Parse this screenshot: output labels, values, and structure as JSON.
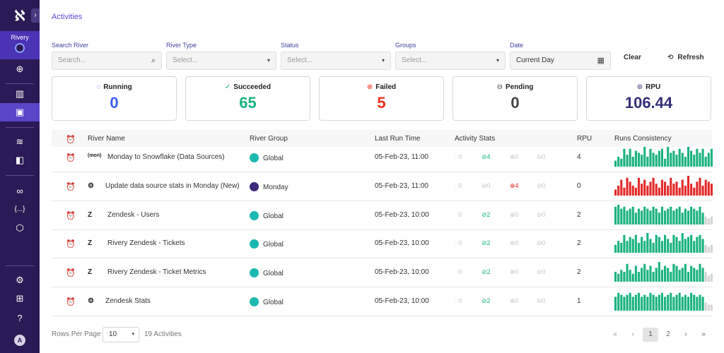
{
  "sidebar": {
    "logo_glyph": "ℵ",
    "expand_glyph": "›",
    "account_label": "Rivery",
    "avatar_letter": "A",
    "items_top": [
      {
        "name": "add-icon",
        "glyph": "⊕"
      },
      {
        "name": "chart-icon",
        "glyph": "▥"
      },
      {
        "name": "activities-icon",
        "glyph": "▣"
      },
      {
        "name": "rivers-icon",
        "glyph": "≋"
      },
      {
        "name": "briefcase-icon",
        "glyph": "◧"
      },
      {
        "name": "link-icon",
        "glyph": "∞"
      },
      {
        "name": "variables-icon",
        "glyph": "{...}"
      },
      {
        "name": "cube-icon",
        "glyph": "⬡"
      }
    ],
    "items_bottom": [
      {
        "name": "settings-icon",
        "glyph": "⚙"
      },
      {
        "name": "gift-icon",
        "glyph": "⊞"
      },
      {
        "name": "help-icon",
        "glyph": "?"
      }
    ]
  },
  "page": {
    "title": "Activities"
  },
  "filters": {
    "search": {
      "label": "Search River",
      "placeholder": "Search...",
      "icon": "🔍"
    },
    "river_type": {
      "label": "River Type",
      "placeholder": "Select..."
    },
    "status": {
      "label": "Status",
      "placeholder": "Select..."
    },
    "groups": {
      "label": "Groups",
      "placeholder": "Select..."
    },
    "date": {
      "label": "Date",
      "value": "Current Day",
      "icon": "▦"
    },
    "clear_label": "Clear",
    "refresh_label": "Refresh",
    "refresh_icon": "⟲",
    "caret": "▾"
  },
  "stats": [
    {
      "label": "Running",
      "value": "0",
      "icon": "◌",
      "color": "#3a5ef0"
    },
    {
      "label": "Succeeded",
      "value": "65",
      "icon": "✓",
      "color": "#1bb27f"
    },
    {
      "label": "Failed",
      "value": "5",
      "icon": "⊗",
      "color": "#f0301e"
    },
    {
      "label": "Pending",
      "value": "0",
      "icon": "⊖",
      "color": "#444444"
    },
    {
      "label": "RPU",
      "value": "106.44",
      "icon": "⊛",
      "color": "#33307a"
    }
  ],
  "table": {
    "headers": {
      "alarm": "⏰",
      "river_name": "River Name",
      "river_group": "River Group",
      "last_run": "Last Run Time",
      "activity_stats": "Activity Stats",
      "rpu": "RPU",
      "consistency": "Runs Consistency"
    },
    "status_glyphs": {
      "running": "◌",
      "succeeded": "⊘",
      "failed": "⊗",
      "pending": "⊖"
    },
    "rows": [
      {
        "river": "Monday to Snowflake (Data Sources)",
        "icon": "(mon)",
        "group": "Global",
        "group_color": "#1bb8b0",
        "last_run": "05-Feb-23, 11:00",
        "running": "0",
        "succeeded": "4",
        "failed": "0",
        "pending": "0",
        "rpu": "4",
        "alarm_active": false,
        "bars": [
          0.3,
          0.5,
          0.4,
          0.9,
          0.6,
          0.9,
          0.5,
          0.8,
          0.7,
          0.6,
          1.0,
          0.5,
          0.9,
          0.7,
          0.6,
          0.8,
          0.9,
          0.4,
          1.0,
          0.7,
          0.8,
          0.6,
          0.9,
          0.7,
          0.5,
          1.0,
          0.8,
          0.6,
          0.9,
          0.7,
          0.9,
          0.5,
          0.7,
          0.9
        ],
        "bar_color": "#1bb27f"
      },
      {
        "river": "Update data source stats in Monday (New)",
        "icon": "⚙",
        "group": "Monday",
        "group_color": "#3d2a7a",
        "last_run": "05-Feb-23, 11:00",
        "running": "0",
        "succeeded": "0",
        "failed": "4",
        "pending": "0",
        "rpu": "0",
        "alarm_active": true,
        "bars": [
          0.3,
          0.5,
          0.8,
          0.4,
          0.9,
          0.7,
          0.5,
          0.4,
          0.9,
          0.6,
          0.8,
          0.5,
          0.7,
          0.9,
          0.6,
          0.4,
          0.8,
          0.7,
          0.5,
          0.9,
          0.6,
          0.7,
          0.4,
          0.8,
          0.5,
          1.0,
          0.6,
          0.4,
          0.7,
          0.9,
          0.5,
          0.8,
          0.7,
          0.6
        ],
        "bar_color": "#e32a2a"
      },
      {
        "river": "Zendesk - Users",
        "icon": "Z",
        "group": "Global",
        "group_color": "#1bb8b0",
        "last_run": "05-Feb-23, 10:00",
        "running": "0",
        "succeeded": "2",
        "failed": "0",
        "pending": "0",
        "rpu": "2",
        "alarm_active": false,
        "bars": [
          0.9,
          1.0,
          0.8,
          0.9,
          0.7,
          0.8,
          0.9,
          0.6,
          0.8,
          0.7,
          0.9,
          0.8,
          0.7,
          0.9,
          0.8,
          0.6,
          0.9,
          0.7,
          0.8,
          0.9,
          0.7,
          0.8,
          0.9,
          0.6,
          0.8,
          0.7,
          0.9,
          0.8,
          0.7,
          0.9,
          0.6,
          0.4,
          0.3,
          0.4
        ],
        "bar_color": "#1bb27f",
        "tail_grey": 3
      },
      {
        "river": "Rivery Zendesk - Tickets",
        "icon": "Z",
        "group": "Global",
        "group_color": "#1bb8b0",
        "last_run": "05-Feb-23, 10:00",
        "running": "0",
        "succeeded": "2",
        "failed": "0",
        "pending": "0",
        "rpu": "2",
        "alarm_active": false,
        "bars": [
          0.4,
          0.6,
          0.5,
          0.9,
          0.6,
          0.8,
          0.7,
          0.9,
          0.5,
          0.8,
          0.6,
          1.0,
          0.7,
          0.5,
          0.9,
          0.8,
          0.6,
          0.9,
          0.7,
          0.5,
          0.9,
          0.8,
          0.6,
          1.0,
          0.7,
          0.8,
          0.9,
          0.6,
          0.8,
          0.9,
          0.7,
          0.4,
          0.3,
          0.4
        ],
        "bar_color": "#1bb27f",
        "tail_grey": 3
      },
      {
        "river": "Rivery Zendesk - Ticket Metrics",
        "icon": "Z",
        "group": "Global",
        "group_color": "#1bb8b0",
        "last_run": "05-Feb-23, 10:00",
        "running": "0",
        "succeeded": "2",
        "failed": "0",
        "pending": "0",
        "rpu": "2",
        "alarm_active": false,
        "bars": [
          0.5,
          0.4,
          0.6,
          0.5,
          0.9,
          0.6,
          0.4,
          0.8,
          0.5,
          0.7,
          0.9,
          0.6,
          0.8,
          0.5,
          0.7,
          1.0,
          0.6,
          0.8,
          0.7,
          0.5,
          0.9,
          0.8,
          0.6,
          0.7,
          0.9,
          0.5,
          0.8,
          0.7,
          0.6,
          0.9,
          0.7,
          0.5,
          0.3,
          0.4
        ],
        "bar_color": "#1bb27f",
        "tail_grey": 3
      },
      {
        "river": "Zendesk Stats",
        "icon": "⚙",
        "group": "Global",
        "group_color": "#1bb8b0",
        "last_run": "05-Feb-23, 10:00",
        "running": "0",
        "succeeded": "2",
        "failed": "0",
        "pending": "0",
        "rpu": "1",
        "alarm_active": true,
        "bars": [
          0.7,
          0.9,
          0.8,
          0.7,
          0.8,
          0.9,
          0.7,
          0.8,
          0.9,
          0.7,
          0.8,
          0.7,
          0.9,
          0.8,
          0.7,
          0.8,
          0.9,
          0.7,
          0.8,
          0.9,
          0.7,
          0.8,
          0.9,
          0.7,
          0.8,
          0.7,
          0.9,
          0.8,
          0.7,
          0.8,
          0.7,
          0.4,
          0.3,
          0.3
        ],
        "bar_color": "#1bb27f",
        "tail_grey": 3
      }
    ]
  },
  "footer": {
    "rows_per_page_label": "Rows Per Page",
    "rows_per_page_value": "10",
    "count_label": "19 Activities",
    "pagination": {
      "first": "«",
      "prev": "‹",
      "pages": [
        "1",
        "2"
      ],
      "current": "1",
      "next": "›",
      "last": "»"
    }
  }
}
